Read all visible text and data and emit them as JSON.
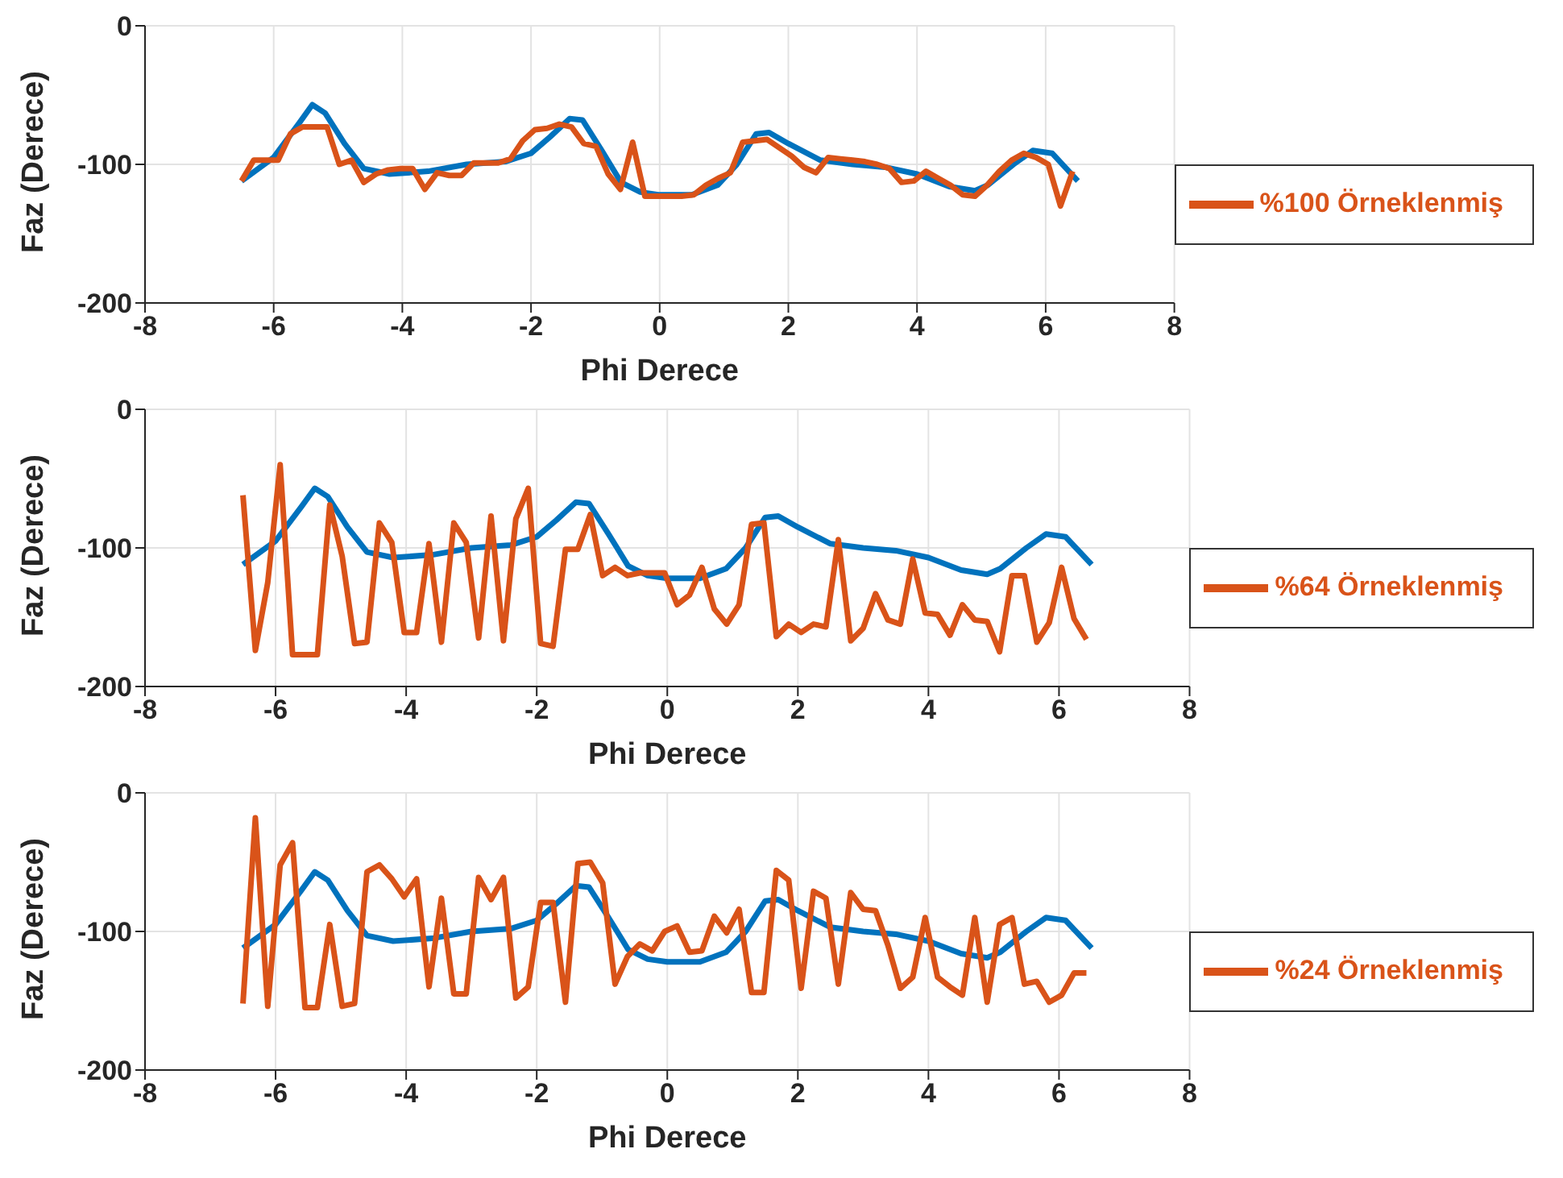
{
  "chart_data": [
    {
      "type": "line",
      "xlabel": "Phi Derece",
      "ylabel": "Faz (Derece)",
      "xlim": [
        -8,
        8
      ],
      "xticks": [
        -8,
        -6,
        -4,
        -2,
        0,
        2,
        4,
        6,
        8
      ],
      "ylim": [
        -200,
        0
      ],
      "yticks": [
        -200,
        -100,
        0
      ],
      "grid": true,
      "legend": "right",
      "marker": "none",
      "line_style": "solid",
      "series": [
        {
          "color": "#0072bd",
          "x": [
            -6.5,
            -6,
            -5.6,
            -5.4,
            -5.2,
            -4.9,
            -4.6,
            -4.2,
            -3.6,
            -3,
            -2.4,
            -2,
            -1.7,
            -1.4,
            -1.2,
            -0.9,
            -0.6,
            -0.3,
            0,
            0.5,
            0.9,
            1.2,
            1.5,
            1.7,
            2,
            2.5,
            3,
            3.5,
            4,
            4.5,
            4.9,
            5.1,
            5.5,
            5.8,
            6.1,
            6.5
          ],
          "values": [
            -112,
            -95,
            -70,
            -57,
            -63,
            -85,
            -103,
            -107,
            -105,
            -100,
            -98,
            -92,
            -80,
            -67,
            -68,
            -90,
            -113,
            -120,
            -122,
            -122,
            -115,
            -100,
            -78,
            -77,
            -85,
            -97,
            -100,
            -102,
            -107,
            -116,
            -119,
            -115,
            -100,
            -90,
            -92,
            -112
          ]
        },
        {
          "name": "%100 Örneklenmiş",
          "color": "#d95319",
          "x": [
            -6.5,
            -6.31,
            -6.12,
            -5.93,
            -5.74,
            -5.55,
            -5.36,
            -5.17,
            -4.98,
            -4.79,
            -4.6,
            -4.41,
            -4.22,
            -4.03,
            -3.84,
            -3.65,
            -3.46,
            -3.27,
            -3.08,
            -2.89,
            -2.7,
            -2.51,
            -2.32,
            -2.13,
            -1.94,
            -1.75,
            -1.56,
            -1.37,
            -1.18,
            -0.99,
            -0.8,
            -0.61,
            -0.42,
            -0.23,
            -0.04,
            0.15,
            0.34,
            0.53,
            0.72,
            0.91,
            1.1,
            1.29,
            1.48,
            1.67,
            1.86,
            2.05,
            2.24,
            2.43,
            2.62,
            2.81,
            3.0,
            3.19,
            3.38,
            3.57,
            3.76,
            3.95,
            4.14,
            4.33,
            4.52,
            4.71,
            4.9,
            5.09,
            5.28,
            5.47,
            5.66,
            5.85,
            6.04,
            6.23,
            6.42
          ],
          "values": [
            -112,
            -97,
            -97,
            -97,
            -78,
            -73,
            -73,
            -73,
            -100,
            -97,
            -113,
            -107,
            -104,
            -103,
            -103,
            -118,
            -106,
            -108,
            -108,
            -99,
            -99,
            -99,
            -96,
            -83,
            -75,
            -74,
            -71,
            -73,
            -85,
            -87,
            -107,
            -118,
            -84,
            -123,
            -123,
            -123,
            -123,
            -122,
            -115,
            -110,
            -106,
            -84,
            -83,
            -82,
            -88,
            -94,
            -102,
            -106,
            -95,
            -96,
            -97,
            -98,
            -100,
            -103,
            -113,
            -112,
            -105,
            -110,
            -115,
            -122,
            -123,
            -115,
            -105,
            -97,
            -92,
            -95,
            -100,
            -130,
            -105
          ]
        }
      ]
    },
    {
      "type": "line",
      "xlabel": "Phi Derece",
      "ylabel": "Faz (Derece)",
      "xlim": [
        -8,
        8
      ],
      "xticks": [
        -8,
        -6,
        -4,
        -2,
        0,
        2,
        4,
        6,
        8
      ],
      "ylim": [
        -200,
        0
      ],
      "yticks": [
        -200,
        -100,
        0
      ],
      "grid": true,
      "legend": "right",
      "marker": "none",
      "line_style": "solid",
      "series": [
        {
          "color": "#0072bd",
          "x": [
            -6.5,
            -6,
            -5.6,
            -5.4,
            -5.2,
            -4.9,
            -4.6,
            -4.2,
            -3.6,
            -3,
            -2.4,
            -2,
            -1.7,
            -1.4,
            -1.2,
            -0.9,
            -0.6,
            -0.3,
            0,
            0.5,
            0.9,
            1.2,
            1.5,
            1.7,
            2,
            2.5,
            3,
            3.5,
            4,
            4.5,
            4.9,
            5.1,
            5.5,
            5.8,
            6.1,
            6.5
          ],
          "values": [
            -112,
            -95,
            -70,
            -57,
            -63,
            -85,
            -103,
            -107,
            -105,
            -100,
            -98,
            -92,
            -80,
            -67,
            -68,
            -90,
            -113,
            -120,
            -122,
            -122,
            -115,
            -100,
            -78,
            -77,
            -85,
            -97,
            -100,
            -102,
            -107,
            -116,
            -119,
            -115,
            -100,
            -90,
            -92,
            -112
          ]
        },
        {
          "name": "%64 Örneklenmiş",
          "color": "#d95319",
          "x": [
            -6.5,
            -6.31,
            -6.12,
            -5.93,
            -5.74,
            -5.55,
            -5.36,
            -5.17,
            -4.98,
            -4.79,
            -4.6,
            -4.41,
            -4.22,
            -4.03,
            -3.84,
            -3.65,
            -3.46,
            -3.27,
            -3.08,
            -2.89,
            -2.7,
            -2.51,
            -2.32,
            -2.13,
            -1.94,
            -1.75,
            -1.56,
            -1.37,
            -1.18,
            -0.99,
            -0.8,
            -0.61,
            -0.42,
            -0.23,
            -0.04,
            0.15,
            0.34,
            0.53,
            0.72,
            0.91,
            1.1,
            1.29,
            1.48,
            1.67,
            1.86,
            2.05,
            2.24,
            2.43,
            2.62,
            2.81,
            3.0,
            3.19,
            3.38,
            3.57,
            3.76,
            3.95,
            4.14,
            4.33,
            4.52,
            4.71,
            4.9,
            5.09,
            5.28,
            5.47,
            5.66,
            5.85,
            6.04,
            6.23,
            6.42
          ],
          "values": [
            -62,
            -174,
            -125,
            -40,
            -177,
            -177,
            -177,
            -69,
            -106,
            -169,
            -168,
            -82,
            -96,
            -161,
            -161,
            -97,
            -168,
            -82,
            -96,
            -165,
            -77,
            -167,
            -79,
            -57,
            -169,
            -171,
            -101,
            -101,
            -76,
            -120,
            -114,
            -120,
            -118,
            -118,
            -118,
            -141,
            -134,
            -114,
            -144,
            -155,
            -141,
            -83,
            -82,
            -164,
            -155,
            -161,
            -155,
            -157,
            -94,
            -167,
            -158,
            -133,
            -152,
            -155,
            -108,
            -147,
            -148,
            -163,
            -141,
            -152,
            -153,
            -175,
            -120,
            -120,
            -168,
            -154,
            -114,
            -151,
            -166
          ]
        }
      ]
    },
    {
      "type": "line",
      "xlabel": "Phi Derece",
      "ylabel": "Faz (Derece)",
      "xlim": [
        -8,
        8
      ],
      "xticks": [
        -8,
        -6,
        -4,
        -2,
        0,
        2,
        4,
        6,
        8
      ],
      "ylim": [
        -200,
        0
      ],
      "yticks": [
        -200,
        -100,
        0
      ],
      "grid": true,
      "legend": "right",
      "marker": "none",
      "line_style": "solid",
      "series": [
        {
          "color": "#0072bd",
          "x": [
            -6.5,
            -6,
            -5.6,
            -5.4,
            -5.2,
            -4.9,
            -4.6,
            -4.2,
            -3.6,
            -3,
            -2.4,
            -2,
            -1.7,
            -1.4,
            -1.2,
            -0.9,
            -0.6,
            -0.3,
            0,
            0.5,
            0.9,
            1.2,
            1.5,
            1.7,
            2,
            2.5,
            3,
            3.5,
            4,
            4.5,
            4.9,
            5.1,
            5.5,
            5.8,
            6.1,
            6.5
          ],
          "values": [
            -112,
            -95,
            -70,
            -57,
            -63,
            -85,
            -103,
            -107,
            -105,
            -100,
            -98,
            -92,
            -80,
            -67,
            -68,
            -90,
            -113,
            -120,
            -122,
            -122,
            -115,
            -100,
            -78,
            -77,
            -85,
            -97,
            -100,
            -102,
            -107,
            -116,
            -119,
            -115,
            -100,
            -90,
            -92,
            -112
          ]
        },
        {
          "name": "%24 Örneklenmiş",
          "color": "#d95319",
          "x": [
            -6.5,
            -6.31,
            -6.12,
            -5.93,
            -5.74,
            -5.55,
            -5.36,
            -5.17,
            -4.98,
            -4.79,
            -4.6,
            -4.41,
            -4.22,
            -4.03,
            -3.84,
            -3.65,
            -3.46,
            -3.27,
            -3.08,
            -2.89,
            -2.7,
            -2.51,
            -2.32,
            -2.13,
            -1.94,
            -1.75,
            -1.56,
            -1.37,
            -1.18,
            -0.99,
            -0.8,
            -0.61,
            -0.42,
            -0.23,
            -0.04,
            0.15,
            0.34,
            0.53,
            0.72,
            0.91,
            1.1,
            1.29,
            1.48,
            1.67,
            1.86,
            2.05,
            2.24,
            2.43,
            2.62,
            2.81,
            3.0,
            3.19,
            3.38,
            3.57,
            3.76,
            3.95,
            4.14,
            4.33,
            4.52,
            4.71,
            4.9,
            5.09,
            5.28,
            5.47,
            5.66,
            5.85,
            6.04,
            6.23,
            6.42
          ],
          "values": [
            -152,
            -18,
            -154,
            -52,
            -36,
            -155,
            -155,
            -95,
            -154,
            -152,
            -57,
            -52,
            -62,
            -75,
            -62,
            -140,
            -76,
            -145,
            -145,
            -61,
            -77,
            -61,
            -148,
            -140,
            -79,
            -79,
            -151,
            -51,
            -50,
            -65,
            -138,
            -118,
            -109,
            -114,
            -100,
            -96,
            -115,
            -114,
            -89,
            -101,
            -84,
            -144,
            -144,
            -56,
            -63,
            -141,
            -71,
            -76,
            -138,
            -72,
            -84,
            -85,
            -110,
            -141,
            -133,
            -90,
            -133,
            -140,
            -146,
            -90,
            -151,
            -95,
            -90,
            -138,
            -136,
            -151,
            -146,
            -130,
            -130
          ]
        }
      ]
    }
  ]
}
